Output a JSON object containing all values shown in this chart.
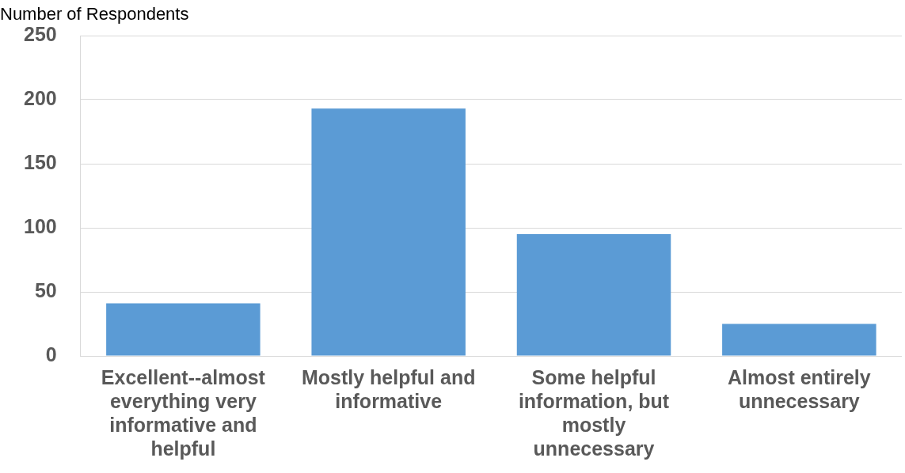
{
  "chart_data": {
    "type": "bar",
    "ylabel": "Number of Respondents",
    "categories": [
      "Excellent--almost everything very informative and helpful",
      "Mostly helpful and informative",
      "Some helpful information, but mostly unnecessary",
      "Almost entirely unnecessary"
    ],
    "values": [
      41,
      193,
      95,
      25
    ],
    "color": "#5b9bd5",
    "ylim": [
      0,
      250
    ],
    "yticks": [
      0,
      50,
      100,
      150,
      200,
      250
    ],
    "grid": "y",
    "legend": false
  }
}
